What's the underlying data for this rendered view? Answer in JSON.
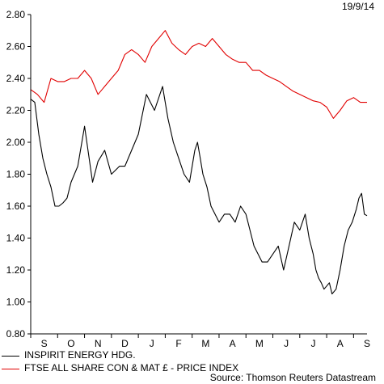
{
  "header": {
    "date": "19/9/14"
  },
  "footer": {
    "source": "Source: Thomson Reuters Datastream"
  },
  "chart_data": {
    "type": "line",
    "title": "",
    "xlabel": "",
    "ylabel": "",
    "ylim": [
      0.8,
      2.8
    ],
    "yticks": [
      "0.80",
      "1.00",
      "1.20",
      "1.40",
      "1.60",
      "1.80",
      "2.00",
      "2.20",
      "2.40",
      "2.60",
      "2.80"
    ],
    "x_month_labels": [
      "S",
      "O",
      "N",
      "D",
      "J",
      "F",
      "M",
      "A",
      "M",
      "J",
      "J",
      "A",
      "S"
    ],
    "grid": false,
    "legend_position": "bottom-left",
    "series": [
      {
        "name": "INSPIRIT ENERGY HDG.",
        "color": "#000000",
        "x": [
          0.0,
          0.15,
          0.3,
          0.45,
          0.6,
          0.75,
          0.9,
          1.05,
          1.2,
          1.35,
          1.5,
          1.75,
          2.0,
          2.3,
          2.5,
          2.75,
          3.0,
          3.3,
          3.5,
          3.75,
          4.0,
          4.3,
          4.6,
          4.9,
          5.1,
          5.3,
          5.5,
          5.7,
          5.9,
          6.1,
          6.2,
          6.3,
          6.4,
          6.55,
          6.7,
          6.85,
          7.0,
          7.2,
          7.4,
          7.6,
          7.8,
          8.0,
          8.15,
          8.3,
          8.45,
          8.6,
          8.8,
          9.0,
          9.2,
          9.4,
          9.6,
          9.8,
          10.0,
          10.2,
          10.35,
          10.5,
          10.6,
          10.7,
          10.8,
          10.9,
          11.0,
          11.1,
          11.2,
          11.35,
          11.5,
          11.65,
          11.8,
          11.95,
          12.1,
          12.2,
          12.3,
          12.4,
          12.5
        ],
        "values": [
          2.27,
          2.25,
          2.05,
          1.9,
          1.8,
          1.72,
          1.6,
          1.6,
          1.62,
          1.65,
          1.75,
          1.85,
          2.1,
          1.75,
          1.88,
          1.95,
          1.8,
          1.85,
          1.85,
          1.95,
          2.05,
          2.3,
          2.2,
          2.35,
          2.15,
          2.0,
          1.9,
          1.8,
          1.75,
          1.95,
          2.0,
          1.9,
          1.8,
          1.72,
          1.6,
          1.55,
          1.5,
          1.55,
          1.55,
          1.5,
          1.6,
          1.55,
          1.45,
          1.35,
          1.3,
          1.25,
          1.25,
          1.3,
          1.35,
          1.2,
          1.35,
          1.5,
          1.45,
          1.55,
          1.4,
          1.3,
          1.2,
          1.15,
          1.12,
          1.08,
          1.1,
          1.12,
          1.05,
          1.08,
          1.2,
          1.35,
          1.45,
          1.5,
          1.58,
          1.65,
          1.68,
          1.55,
          1.54
        ]
      },
      {
        "name": "FTSE ALL SHARE CON & MAT £ - PRICE INDEX",
        "color": "#e10000",
        "x": [
          0.0,
          0.25,
          0.5,
          0.75,
          1.0,
          1.25,
          1.5,
          1.75,
          2.0,
          2.25,
          2.5,
          2.75,
          3.0,
          3.25,
          3.5,
          3.75,
          4.0,
          4.25,
          4.5,
          4.75,
          5.0,
          5.25,
          5.5,
          5.75,
          6.0,
          6.25,
          6.5,
          6.75,
          7.0,
          7.25,
          7.5,
          7.75,
          8.0,
          8.25,
          8.5,
          8.75,
          9.0,
          9.25,
          9.5,
          9.75,
          10.0,
          10.25,
          10.5,
          10.75,
          11.0,
          11.25,
          11.5,
          11.75,
          12.0,
          12.25,
          12.5
        ],
        "values": [
          2.33,
          2.3,
          2.25,
          2.4,
          2.38,
          2.38,
          2.4,
          2.4,
          2.45,
          2.4,
          2.3,
          2.35,
          2.4,
          2.45,
          2.55,
          2.58,
          2.55,
          2.5,
          2.6,
          2.65,
          2.7,
          2.62,
          2.58,
          2.55,
          2.6,
          2.62,
          2.6,
          2.65,
          2.6,
          2.55,
          2.52,
          2.5,
          2.5,
          2.45,
          2.45,
          2.42,
          2.4,
          2.38,
          2.35,
          2.32,
          2.3,
          2.28,
          2.26,
          2.25,
          2.22,
          2.15,
          2.2,
          2.26,
          2.28,
          2.25,
          2.25
        ]
      }
    ]
  }
}
